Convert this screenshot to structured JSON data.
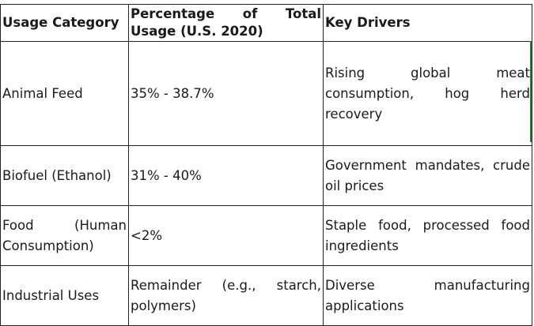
{
  "table": {
    "headers": [
      "Usage Category",
      "Percentage of Total Usage (U.S. 2020)",
      "Key Drivers"
    ],
    "rows": [
      {
        "category": "Animal Feed",
        "percentage": "35% - 38.7%",
        "drivers": "Rising global meat consumption, hog herd recovery"
      },
      {
        "category": "Biofuel (Ethanol)",
        "percentage": "31% - 40%",
        "drivers": "Government mandates, crude oil prices"
      },
      {
        "category": "Food (Human Consumption)",
        "percentage": "<2%",
        "drivers": "Staple food, processed food ingredients"
      },
      {
        "category": "Industrial Uses",
        "percentage": "Remainder (e.g., starch, polymers)",
        "drivers": "Diverse manufacturing applications"
      }
    ]
  },
  "colors": {
    "border": "#222222",
    "accent_rule": "#2e7d32"
  }
}
